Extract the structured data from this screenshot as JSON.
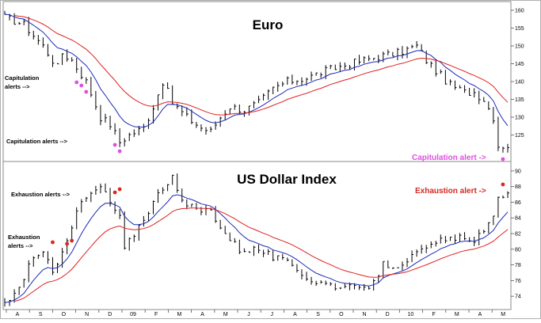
{
  "chart_data": [
    {
      "type": "ohlc",
      "title": "Euro",
      "ylim": [
        118,
        162
      ],
      "yticks": [
        "160",
        "155",
        "150",
        "145",
        "140",
        "135",
        "130",
        "125"
      ],
      "ytick_values": [
        160,
        155,
        150,
        145,
        140,
        135,
        130,
        125
      ],
      "x_start_month": "A",
      "close_anchors": [
        [
          0,
          158
        ],
        [
          4,
          156
        ],
        [
          8,
          150
        ],
        [
          11,
          144
        ],
        [
          12,
          148
        ],
        [
          14,
          146
        ],
        [
          17,
          140
        ],
        [
          20,
          130
        ],
        [
          22,
          128
        ],
        [
          24,
          123
        ],
        [
          26,
          125
        ],
        [
          29,
          127
        ],
        [
          31,
          133
        ],
        [
          33,
          140
        ],
        [
          35,
          134
        ],
        [
          38,
          130
        ],
        [
          41,
          127
        ],
        [
          43,
          126
        ],
        [
          45,
          130
        ],
        [
          47,
          133
        ],
        [
          50,
          132
        ],
        [
          53,
          134
        ],
        [
          56,
          138
        ],
        [
          59,
          140
        ],
        [
          63,
          141
        ],
        [
          67,
          143
        ],
        [
          72,
          145
        ],
        [
          78,
          147
        ],
        [
          82,
          148
        ],
        [
          86,
          150
        ],
        [
          88,
          146
        ],
        [
          90,
          143
        ],
        [
          93,
          139
        ],
        [
          96,
          137
        ],
        [
          98,
          137
        ],
        [
          100,
          135
        ],
        [
          102,
          130
        ],
        [
          103,
          122
        ]
      ],
      "series": [
        {
          "name": "",
          "color": "#1c2ab8",
          "span": [
            8,
            105
          ]
        },
        {
          "name": "",
          "color": "#e02020",
          "span": [
            20,
            105
          ]
        }
      ],
      "annotations": [
        {
          "text": "Capitulation",
          "color": "#000000",
          "line": 1
        },
        {
          "text": "alerts -->",
          "color": "#000000",
          "line": 2
        },
        {
          "text": "Capitulation alerts -->",
          "color": "#000000",
          "line": 1
        },
        {
          "text": "Capitulation alert ->",
          "color": "#e04ee0",
          "line": 1
        }
      ],
      "alert_markers": {
        "color": "#e04ee0",
        "count": 4
      }
    },
    {
      "type": "ohlc",
      "title": "US Dollar Index",
      "ylim": [
        72.5,
        91
      ],
      "yticks": [
        "90",
        "88",
        "86",
        "84",
        "82",
        "80",
        "78",
        "76",
        "74"
      ],
      "ytick_values": [
        90,
        88,
        86,
        84,
        82,
        80,
        78,
        76,
        74
      ],
      "close_anchors": [
        [
          0,
          73
        ],
        [
          3,
          75
        ],
        [
          5,
          78
        ],
        [
          8,
          79.5
        ],
        [
          10,
          77
        ],
        [
          12,
          80
        ],
        [
          14,
          83
        ],
        [
          16,
          86
        ],
        [
          18,
          87
        ],
        [
          20,
          88
        ],
        [
          22,
          86
        ],
        [
          24,
          84
        ],
        [
          25,
          80
        ],
        [
          27,
          82
        ],
        [
          29,
          84
        ],
        [
          31,
          86
        ],
        [
          33,
          88
        ],
        [
          35,
          89
        ],
        [
          37,
          86
        ],
        [
          40,
          85
        ],
        [
          43,
          85
        ],
        [
          46,
          82
        ],
        [
          49,
          80
        ],
        [
          53,
          80
        ],
        [
          56,
          79
        ],
        [
          60,
          78
        ],
        [
          64,
          76
        ],
        [
          68,
          75.5
        ],
        [
          72,
          75
        ],
        [
          75,
          74.8
        ],
        [
          77,
          76
        ],
        [
          79,
          78
        ],
        [
          82,
          78
        ],
        [
          85,
          79
        ],
        [
          88,
          80
        ],
        [
          91,
          81
        ],
        [
          94,
          81.5
        ],
        [
          97,
          81
        ],
        [
          100,
          82
        ],
        [
          102,
          84
        ],
        [
          103,
          87
        ]
      ],
      "series": [
        {
          "name": "",
          "color": "#1c2ab8",
          "span": [
            8,
            105
          ]
        },
        {
          "name": "",
          "color": "#e02020",
          "span": [
            20,
            105
          ]
        }
      ],
      "annotations": [
        {
          "text": "Exhaustion alerts -->",
          "color": "#000000",
          "line": 1
        },
        {
          "text": "Exhaustion",
          "color": "#000000",
          "line": 1
        },
        {
          "text": "alerts -->",
          "color": "#000000",
          "line": 2
        },
        {
          "text": "Exhaustion alert ->",
          "color": "#d42a20",
          "line": 1
        }
      ],
      "alert_markers": {
        "color": "#d42a20",
        "count": 4
      }
    }
  ],
  "x_axis": {
    "labels": [
      "A",
      "S",
      "O",
      "N",
      "D",
      "09",
      "F",
      "M",
      "A",
      "M",
      "J",
      "J",
      "A",
      "S",
      "O",
      "N",
      "D",
      "10",
      "F",
      "M",
      "A",
      "M"
    ]
  },
  "colors": {
    "bars": "#000000",
    "fast_ma": "#1c2ab8",
    "slow_ma": "#e02020",
    "grid": "#cccccc",
    "frame": "#b0b0b0"
  }
}
